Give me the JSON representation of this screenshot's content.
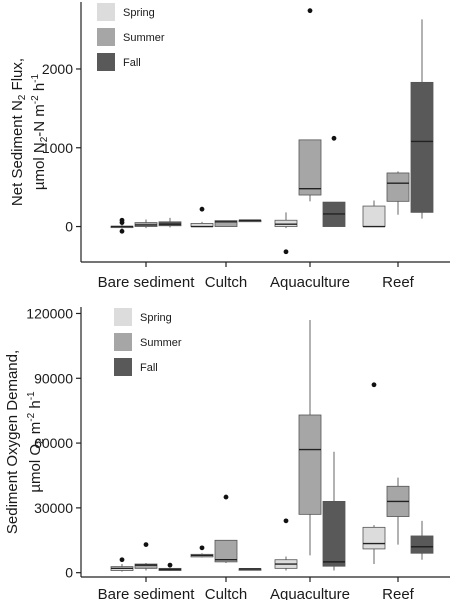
{
  "chart_data": [
    {
      "type": "box",
      "categories": [
        "Bare sediment",
        "Cultch",
        "Aquaculture",
        "Reef"
      ],
      "ylabel_lines": [
        [
          {
            "t": "Net Sediment N"
          },
          {
            "t": "2",
            "sub": true
          },
          {
            "t": " Flux,"
          }
        ],
        [
          {
            "t": "µmol N"
          },
          {
            "t": "2",
            "sub": true
          },
          {
            "t": "-N m"
          },
          {
            "t": "-2",
            "sup": true
          },
          {
            "t": " h"
          },
          {
            "t": "-1",
            "sup": true
          }
        ]
      ],
      "ylim": [
        -450,
        2850
      ],
      "yticks": [
        0,
        1000,
        2000
      ],
      "ytick_labels": [
        "0",
        "1000",
        "2000"
      ],
      "legend_position": "top-left",
      "colors": {
        "Spring": "#dcdcdc",
        "Summer": "#a6a6a6",
        "Fall": "#595959"
      },
      "series": [
        {
          "name": "Spring",
          "boxes": [
            {
              "category": "Bare sediment",
              "whisker_low": -30,
              "q1": 0,
              "median": 0,
              "q3": 5,
              "whisker_high": 40,
              "outliers": [
                50,
                80,
                -60
              ]
            },
            {
              "category": "Cultch",
              "whisker_low": 0,
              "q1": 0,
              "median": 0,
              "q3": 40,
              "whisker_high": 60,
              "outliers": [
                220
              ]
            },
            {
              "category": "Aquaculture",
              "whisker_low": -20,
              "q1": 0,
              "median": 30,
              "q3": 80,
              "whisker_high": 180,
              "outliers": [
                -320
              ]
            },
            {
              "category": "Reef",
              "whisker_low": 0,
              "q1": 0,
              "median": 0,
              "q3": 260,
              "whisker_high": 330,
              "outliers": []
            }
          ]
        },
        {
          "name": "Summer",
          "boxes": [
            {
              "category": "Bare sediment",
              "whisker_low": -20,
              "q1": 0,
              "median": 20,
              "q3": 50,
              "whisker_high": 90,
              "outliers": []
            },
            {
              "category": "Cultch",
              "whisker_low": 0,
              "q1": 0,
              "median": 60,
              "q3": 75,
              "whisker_high": 75,
              "outliers": []
            },
            {
              "category": "Aquaculture",
              "whisker_low": 320,
              "q1": 400,
              "median": 480,
              "q3": 1100,
              "whisker_high": 1100,
              "outliers": [
                2740
              ]
            },
            {
              "category": "Reef",
              "whisker_low": 150,
              "q1": 320,
              "median": 550,
              "q3": 680,
              "whisker_high": 700,
              "outliers": []
            }
          ]
        },
        {
          "name": "Fall",
          "boxes": [
            {
              "category": "Bare sediment",
              "whisker_low": -10,
              "q1": 10,
              "median": 30,
              "q3": 60,
              "whisker_high": 110,
              "outliers": []
            },
            {
              "category": "Cultch",
              "whisker_low": 80,
              "q1": 80,
              "median": 80,
              "q3": 80,
              "whisker_high": 80,
              "outliers": []
            },
            {
              "category": "Aquaculture",
              "whisker_low": 0,
              "q1": 0,
              "median": 160,
              "q3": 310,
              "whisker_high": 310,
              "outliers": [
                1120
              ]
            },
            {
              "category": "Reef",
              "whisker_low": 100,
              "q1": 180,
              "median": 1080,
              "q3": 1830,
              "whisker_high": 2630,
              "outliers": []
            }
          ]
        }
      ]
    },
    {
      "type": "box",
      "categories": [
        "Bare sediment",
        "Cultch",
        "Aquaculture",
        "Reef"
      ],
      "ylabel_lines": [
        [
          {
            "t": "Sediment Oxygen Demand,"
          }
        ],
        [
          {
            "t": "µmol O"
          },
          {
            "t": "2",
            "sub": true
          },
          {
            "t": " m"
          },
          {
            "t": "-2",
            "sup": true
          },
          {
            "t": " h"
          },
          {
            "t": "-1",
            "sup": true
          }
        ]
      ],
      "ylim": [
        -2000,
        123000
      ],
      "yticks": [
        0,
        30000,
        60000,
        90000,
        120000
      ],
      "ytick_labels": [
        "0",
        "30000",
        "60000",
        "90000",
        "120000"
      ],
      "legend_position": "top-left",
      "colors": {
        "Spring": "#dcdcdc",
        "Summer": "#a6a6a6",
        "Fall": "#595959"
      },
      "series": [
        {
          "name": "Spring",
          "boxes": [
            {
              "category": "Bare sediment",
              "whisker_low": 500,
              "q1": 1000,
              "median": 2000,
              "q3": 2800,
              "whisker_high": 4000,
              "outliers": [
                6000
              ]
            },
            {
              "category": "Cultch",
              "whisker_low": 7000,
              "q1": 7300,
              "median": 8000,
              "q3": 8500,
              "whisker_high": 9000,
              "outliers": [
                11500
              ]
            },
            {
              "category": "Aquaculture",
              "whisker_low": 1000,
              "q1": 2000,
              "median": 4000,
              "q3": 6000,
              "whisker_high": 7500,
              "outliers": [
                24000
              ]
            },
            {
              "category": "Reef",
              "whisker_low": 4000,
              "q1": 11000,
              "median": 13500,
              "q3": 21000,
              "whisker_high": 22000,
              "outliers": [
                87000
              ]
            }
          ]
        },
        {
          "name": "Summer",
          "boxes": [
            {
              "category": "Bare sediment",
              "whisker_low": 1000,
              "q1": 2000,
              "median": 3500,
              "q3": 4000,
              "whisker_high": 4500,
              "outliers": [
                13000
              ]
            },
            {
              "category": "Cultch",
              "whisker_low": 4500,
              "q1": 5000,
              "median": 6000,
              "q3": 15000,
              "whisker_high": 15000,
              "outliers": [
                35000
              ]
            },
            {
              "category": "Aquaculture",
              "whisker_low": 8000,
              "q1": 27000,
              "median": 57000,
              "q3": 73000,
              "whisker_high": 117000,
              "outliers": []
            },
            {
              "category": "Reef",
              "whisker_low": 13000,
              "q1": 26000,
              "median": 33000,
              "q3": 40000,
              "whisker_high": 44000,
              "outliers": []
            }
          ]
        },
        {
          "name": "Fall",
          "boxes": [
            {
              "category": "Bare sediment",
              "whisker_low": 800,
              "q1": 1000,
              "median": 1500,
              "q3": 2000,
              "whisker_high": 2200,
              "outliers": [
                3500
              ]
            },
            {
              "category": "Cultch",
              "whisker_low": 1800,
              "q1": 1800,
              "median": 1800,
              "q3": 1800,
              "whisker_high": 1800,
              "outliers": []
            },
            {
              "category": "Aquaculture",
              "whisker_low": 1000,
              "q1": 3000,
              "median": 5000,
              "q3": 33000,
              "whisker_high": 56000,
              "outliers": []
            },
            {
              "category": "Reef",
              "whisker_low": 6000,
              "q1": 9000,
              "median": 12000,
              "q3": 17000,
              "whisker_high": 24000,
              "outliers": []
            }
          ]
        }
      ]
    }
  ]
}
